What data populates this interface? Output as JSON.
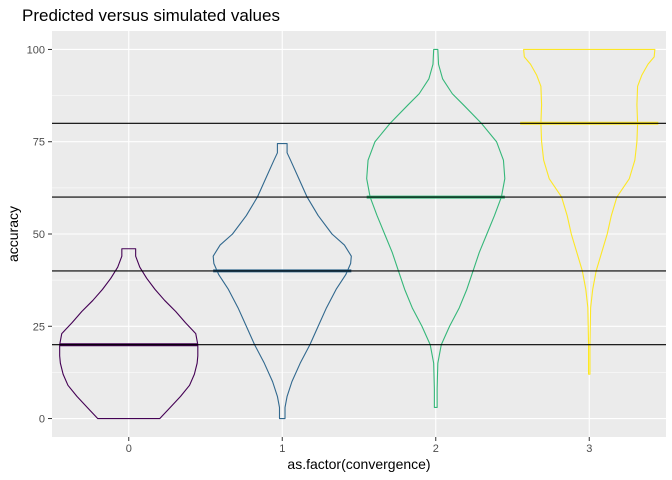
{
  "chart_data": {
    "type": "violin",
    "title": "Predicted versus simulated values",
    "xlabel": "as.factor(convergence)",
    "ylabel": "accuracy",
    "categories": [
      "0",
      "1",
      "2",
      "3"
    ],
    "ylim": [
      -5,
      105
    ],
    "yticks": [
      0,
      25,
      50,
      75,
      100
    ],
    "grid": true,
    "reference_lines": [
      20,
      40,
      60,
      80
    ],
    "colors": [
      "#440154",
      "#31688E",
      "#35B779",
      "#FDE725"
    ],
    "groups": [
      {
        "category": "0",
        "color": "#440154",
        "mean": 20,
        "profile": [
          [
            0,
            0.45
          ],
          [
            3,
            0.6
          ],
          [
            6,
            0.75
          ],
          [
            9,
            0.88
          ],
          [
            12,
            0.95
          ],
          [
            15,
            0.99
          ],
          [
            17,
            1.0
          ],
          [
            20,
            1.0
          ],
          [
            23,
            0.97
          ],
          [
            26,
            0.82
          ],
          [
            29,
            0.68
          ],
          [
            32,
            0.52
          ],
          [
            35,
            0.38
          ],
          [
            38,
            0.26
          ],
          [
            41,
            0.16
          ],
          [
            44,
            0.1
          ],
          [
            46,
            0.1
          ]
        ]
      },
      {
        "category": "1",
        "color": "#31688E",
        "mean": 40,
        "profile": [
          [
            0,
            0.04
          ],
          [
            3,
            0.04
          ],
          [
            6,
            0.07
          ],
          [
            10,
            0.14
          ],
          [
            15,
            0.26
          ],
          [
            20,
            0.4
          ],
          [
            25,
            0.52
          ],
          [
            30,
            0.64
          ],
          [
            35,
            0.78
          ],
          [
            39,
            0.92
          ],
          [
            42,
            0.99
          ],
          [
            44,
            1.0
          ],
          [
            47,
            0.9
          ],
          [
            50,
            0.72
          ],
          [
            55,
            0.52
          ],
          [
            60,
            0.36
          ],
          [
            65,
            0.24
          ],
          [
            70,
            0.12
          ],
          [
            72,
            0.07
          ],
          [
            74.5,
            0.07
          ]
        ]
      },
      {
        "category": "2",
        "color": "#35B779",
        "mean": 60,
        "profile": [
          [
            3,
            0.02
          ],
          [
            8,
            0.02
          ],
          [
            15,
            0.03
          ],
          [
            20,
            0.08
          ],
          [
            25,
            0.2
          ],
          [
            30,
            0.34
          ],
          [
            35,
            0.45
          ],
          [
            40,
            0.54
          ],
          [
            45,
            0.63
          ],
          [
            50,
            0.74
          ],
          [
            55,
            0.85
          ],
          [
            60,
            0.95
          ],
          [
            65,
            1.0
          ],
          [
            70,
            0.98
          ],
          [
            75,
            0.88
          ],
          [
            80,
            0.66
          ],
          [
            85,
            0.4
          ],
          [
            88,
            0.24
          ],
          [
            92,
            0.1
          ],
          [
            96,
            0.04
          ],
          [
            100,
            0.03
          ]
        ]
      },
      {
        "category": "3",
        "color": "#FDE725",
        "mean": 80,
        "profile": [
          [
            12,
            0.01
          ],
          [
            20,
            0.01
          ],
          [
            30,
            0.02
          ],
          [
            35,
            0.05
          ],
          [
            40,
            0.1
          ],
          [
            45,
            0.18
          ],
          [
            50,
            0.26
          ],
          [
            55,
            0.32
          ],
          [
            60,
            0.4
          ],
          [
            65,
            0.58
          ],
          [
            70,
            0.66
          ],
          [
            75,
            0.69
          ],
          [
            80,
            0.7
          ],
          [
            85,
            0.69
          ],
          [
            90,
            0.7
          ],
          [
            93,
            0.76
          ],
          [
            96,
            0.85
          ],
          [
            98,
            0.94
          ],
          [
            100,
            0.95
          ]
        ]
      }
    ]
  }
}
